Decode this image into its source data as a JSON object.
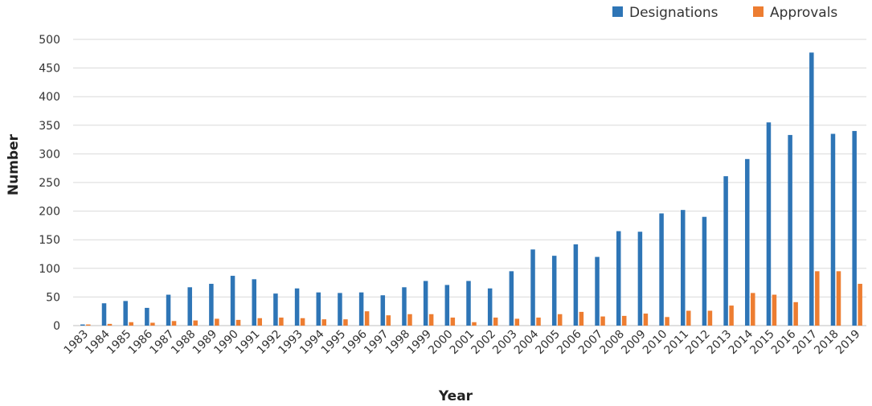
{
  "chart_data": {
    "type": "bar",
    "title": "",
    "xlabel": "Year",
    "ylabel": "Number",
    "ylim": [
      0,
      500
    ],
    "yticks": [
      0,
      50,
      100,
      150,
      200,
      250,
      300,
      350,
      400,
      450,
      500
    ],
    "grid": true,
    "legend_position": "top-right",
    "categories": [
      "1983",
      "1984",
      "1985",
      "1986",
      "1987",
      "1988",
      "1989",
      "1990",
      "1991",
      "1992",
      "1993",
      "1994",
      "1995",
      "1996",
      "1997",
      "1998",
      "1999",
      "2000",
      "2001",
      "2002",
      "2003",
      "2004",
      "2005",
      "2006",
      "2007",
      "2008",
      "2009",
      "2010",
      "2011",
      "2012",
      "2013",
      "2014",
      "2015",
      "2016",
      "2017",
      "2018",
      "2019"
    ],
    "series": [
      {
        "name": "Designations",
        "color": "#2e75b6",
        "values": [
          2,
          39,
          43,
          31,
          54,
          67,
          73,
          87,
          81,
          56,
          65,
          58,
          57,
          58,
          53,
          67,
          78,
          71,
          78,
          65,
          95,
          133,
          122,
          142,
          120,
          165,
          164,
          196,
          202,
          190,
          261,
          291,
          355,
          333,
          477,
          335,
          340
        ]
      },
      {
        "name": "Approvals",
        "color": "#ed7d31",
        "values": [
          2,
          3,
          6,
          5,
          8,
          9,
          12,
          10,
          13,
          14,
          13,
          11,
          11,
          25,
          18,
          20,
          20,
          14,
          6,
          14,
          12,
          14,
          20,
          24,
          16,
          17,
          21,
          15,
          26,
          26,
          35,
          57,
          54,
          41,
          95,
          95,
          73
        ]
      }
    ]
  }
}
